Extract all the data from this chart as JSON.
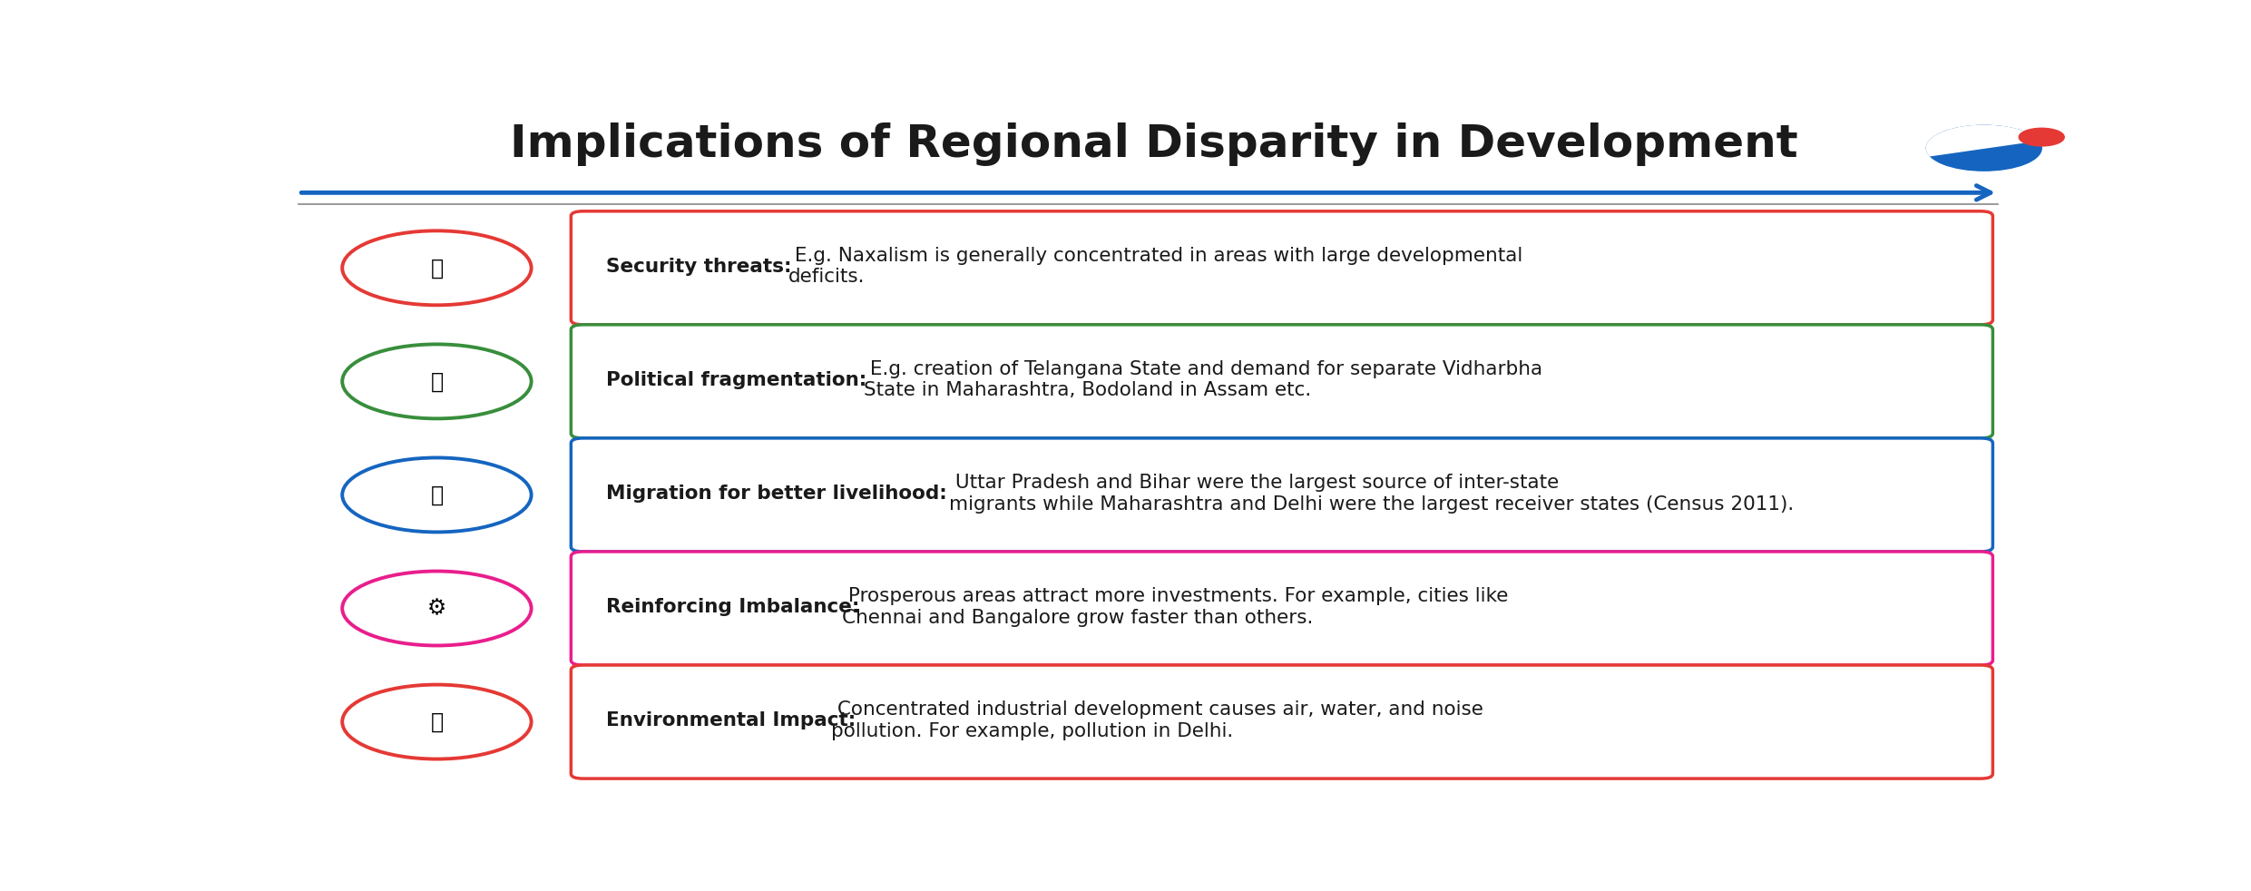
{
  "title": "Implications of Regional Disparity in Development",
  "title_fontsize": 36,
  "background_color": "#ffffff",
  "top_line_color": "#1565c0",
  "separator_line_color": "#555555",
  "items": [
    {
      "bold_text": "Security threats:",
      "regular_text": " E.g. Naxalism is generally concentrated in areas with large developmental\ndeficits.",
      "border_color": "#e53935",
      "icon_border_color": "#e53935"
    },
    {
      "bold_text": "Political fragmentation:",
      "regular_text": " E.g. creation of Telangana State and demand for separate Vidharbha\nState in Maharashtra, Bodoland in Assam etc.",
      "border_color": "#388e3c",
      "icon_border_color": "#388e3c"
    },
    {
      "bold_text": "Migration for better livelihood:",
      "regular_text": " Uttar Pradesh and Bihar were the largest source of inter-state\nmigrants while Maharashtra and Delhi were the largest receiver states (Census 2011).",
      "border_color": "#1565c0",
      "icon_border_color": "#1565c0"
    },
    {
      "bold_text": "Reinforcing Imbalance:",
      "regular_text": " Prosperous areas attract more investments. For example, cities like\nChennai and Bangalore grow faster than others.",
      "border_color": "#e91e8c",
      "icon_border_color": "#e91e8c"
    },
    {
      "bold_text": "Environmental Impact:",
      "regular_text": " Concentrated industrial development causes air, water, and noise\npollution. For example, pollution in Delhi.",
      "border_color": "#e53935",
      "icon_border_color": "#e53935"
    }
  ],
  "arrow_color": "#1565c0",
  "logo_blue": "#1565c0",
  "logo_red": "#e53935"
}
